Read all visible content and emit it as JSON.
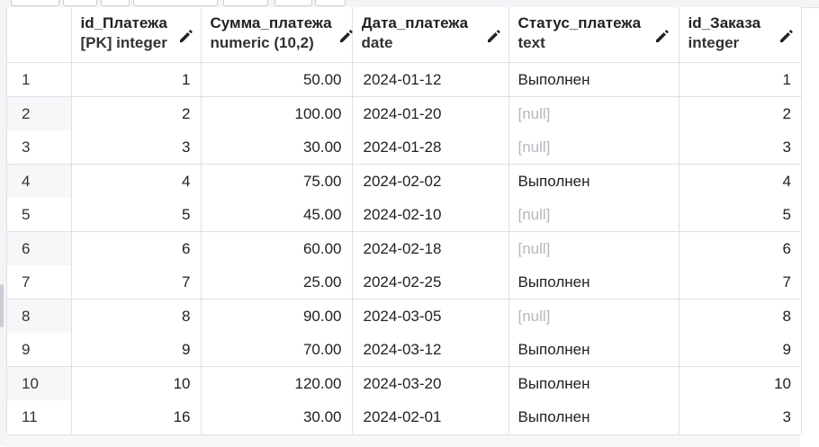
{
  "grid": {
    "columns": [
      {
        "name": "",
        "type": ""
      },
      {
        "name": "id_Платежа",
        "type": "[PK] integer"
      },
      {
        "name": "Сумма_платежа",
        "type": "numeric (10,2)"
      },
      {
        "name": "Дата_платежа",
        "type": "date"
      },
      {
        "name": "Статус_платежа",
        "type": "text"
      },
      {
        "name": "id_Заказа",
        "type": "integer"
      }
    ],
    "rows": [
      [
        "1",
        "1",
        "50.00",
        "2024-01-12",
        "Выполнен",
        "1"
      ],
      [
        "2",
        "2",
        "100.00",
        "2024-01-20",
        "[null]",
        "2"
      ],
      [
        "3",
        "3",
        "30.00",
        "2024-01-28",
        "[null]",
        "3"
      ],
      [
        "4",
        "4",
        "75.00",
        "2024-02-02",
        "Выполнен",
        "4"
      ],
      [
        "5",
        "5",
        "45.00",
        "2024-02-10",
        "[null]",
        "5"
      ],
      [
        "6",
        "6",
        "60.00",
        "2024-02-18",
        "[null]",
        "6"
      ],
      [
        "7",
        "7",
        "25.00",
        "2024-02-25",
        "Выполнен",
        "7"
      ],
      [
        "8",
        "8",
        "90.00",
        "2024-03-05",
        "[null]",
        "8"
      ],
      [
        "9",
        "9",
        "70.00",
        "2024-03-12",
        "Выполнен",
        "9"
      ],
      [
        "10",
        "10",
        "120.00",
        "2024-03-20",
        "Выполнен",
        "10"
      ],
      [
        "11",
        "16",
        "30.00",
        "2024-02-01",
        "Выполнен",
        "3"
      ]
    ],
    "null_text": "[null]",
    "icons": {
      "column_edit": "pencil-icon"
    },
    "colors": {
      "null_text": "#b4b8be",
      "border": "#dde0e4",
      "row_header_bg": "#f6f7f9"
    }
  }
}
